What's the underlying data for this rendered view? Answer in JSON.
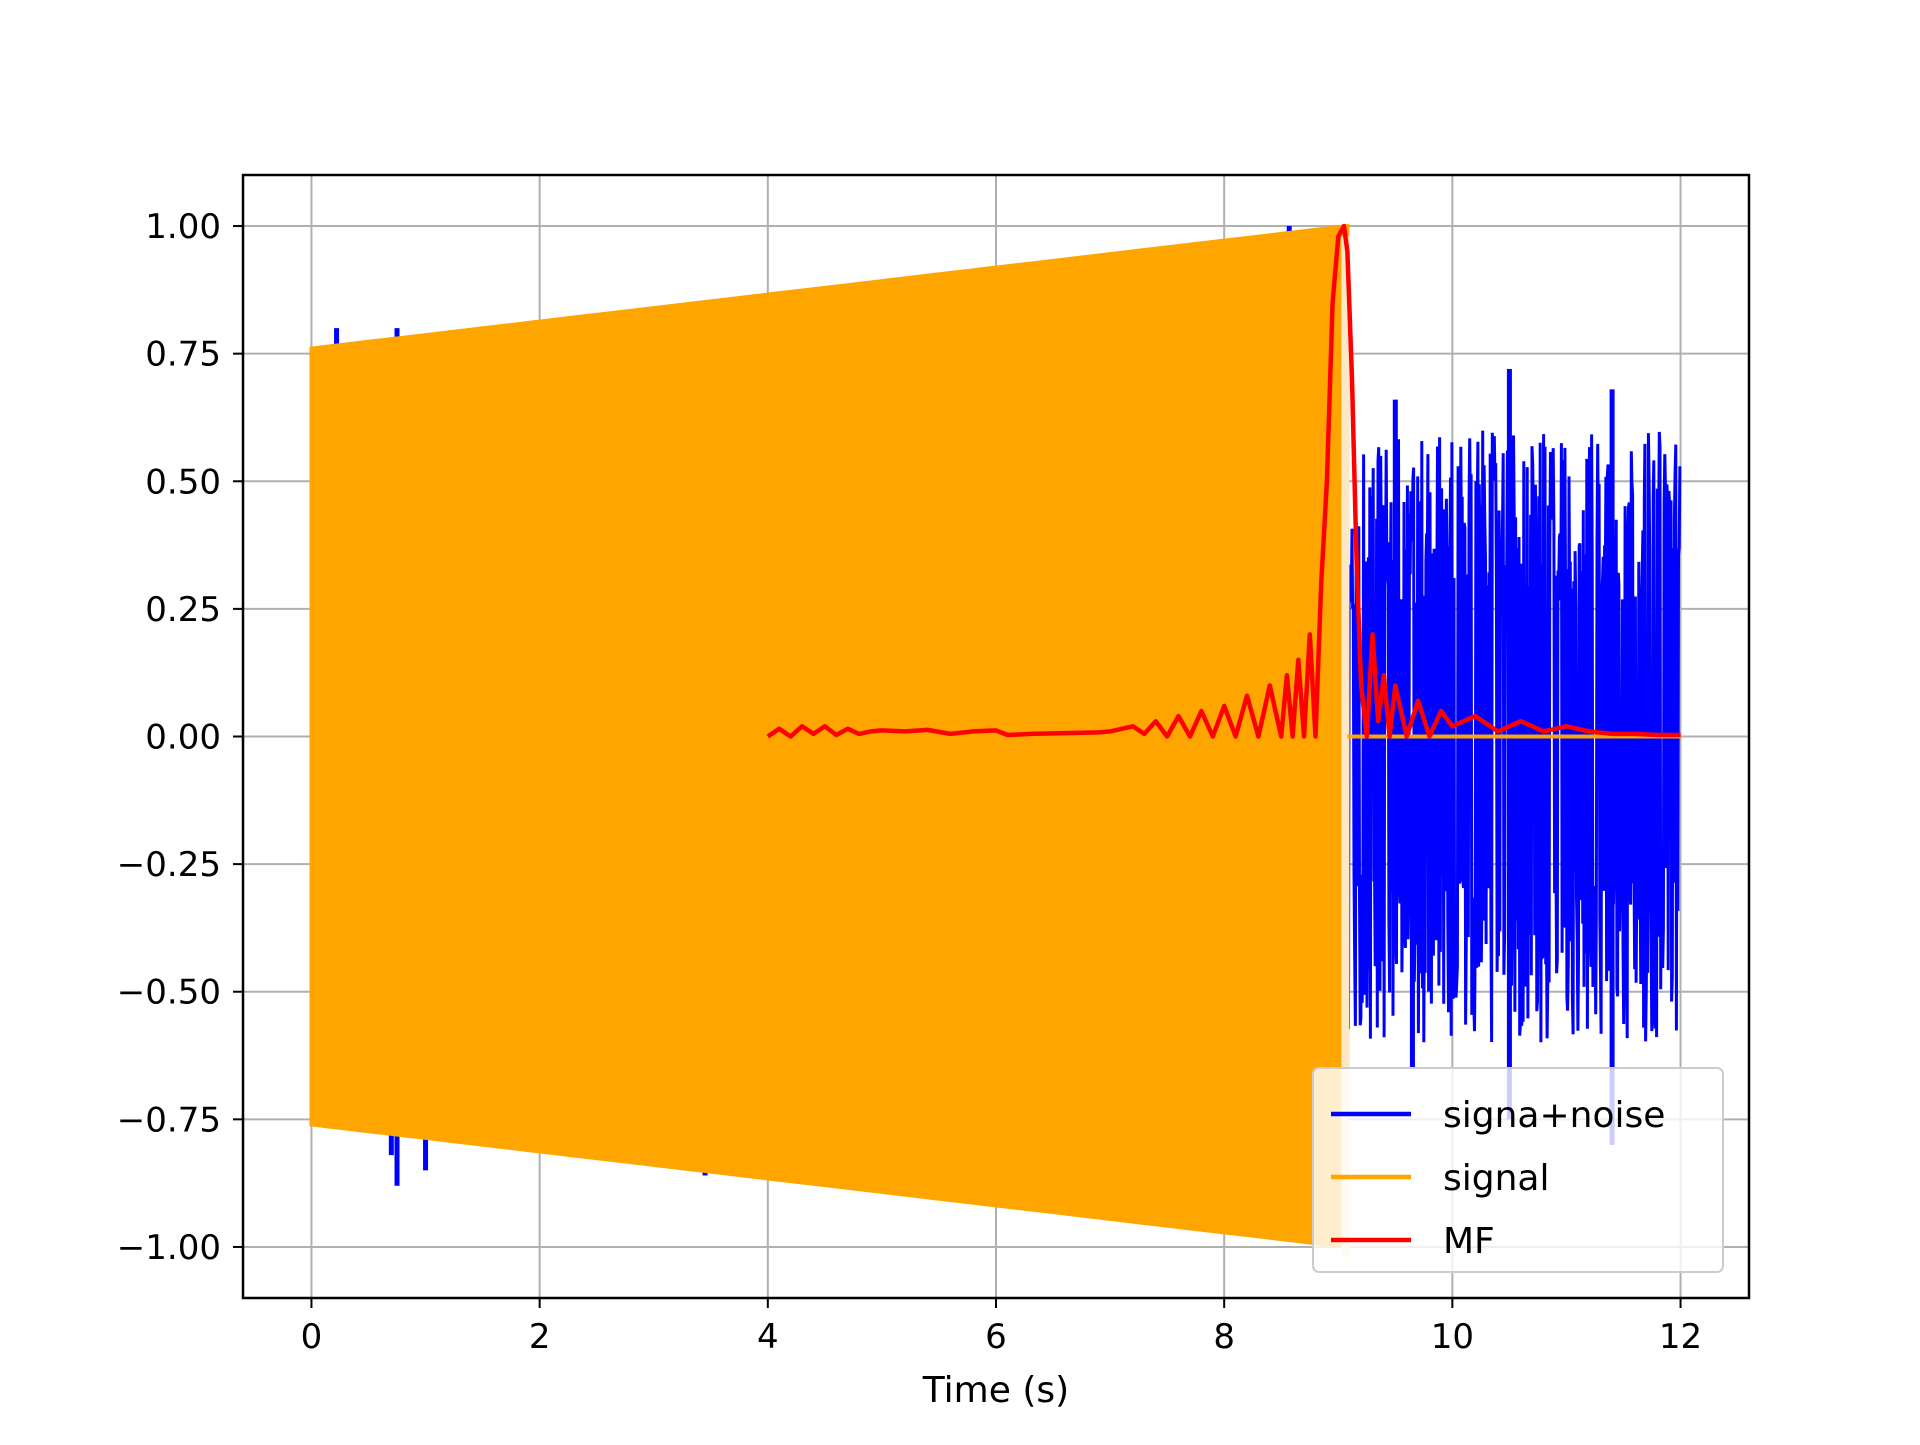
{
  "chart_data": {
    "type": "line",
    "title": "",
    "xlabel": "Time (s)",
    "ylabel": "",
    "xlim": [
      -0.6,
      12.6
    ],
    "ylim": [
      -1.1,
      1.1
    ],
    "grid": true,
    "legend_position": "lower-right",
    "x_ticks": [
      0,
      2,
      4,
      6,
      8,
      10,
      12
    ],
    "x_tick_labels": [
      "0",
      "2",
      "4",
      "6",
      "8",
      "10",
      "12"
    ],
    "y_ticks": [
      1.0,
      0.75,
      0.5,
      0.25,
      0.0,
      -0.25,
      -0.5,
      -0.75,
      -1.0
    ],
    "y_tick_labels": [
      "1.00",
      "0.75",
      "0.50",
      "0.25",
      "0.00",
      "−0.25",
      "−0.50",
      "−0.75",
      "−1.00"
    ],
    "series": [
      {
        "name": "signa+noise",
        "color": "#0000ff",
        "segments": [
          {
            "description_key": "noise_before",
            "x": [
              0.0,
              12.0
            ],
            "amplitude": 0.5
          },
          {
            "description_key": "noise_after",
            "x": [
              9.08,
              12.0
            ],
            "amplitude": 0.6
          }
        ],
        "spikes": [
          {
            "x": 0.22,
            "y": 0.8
          },
          {
            "x": 0.75,
            "y": 0.8
          },
          {
            "x": 0.7,
            "y": -0.82
          },
          {
            "x": 0.75,
            "y": -0.88
          },
          {
            "x": 1.0,
            "y": -0.85
          },
          {
            "x": 3.45,
            "y": -0.86
          },
          {
            "x": 8.57,
            "y": 1.0
          },
          {
            "x": 9.5,
            "y": 0.66
          },
          {
            "x": 10.5,
            "y": 0.72
          },
          {
            "x": 11.4,
            "y": 0.68
          },
          {
            "x": 9.65,
            "y": -0.65
          },
          {
            "x": 10.5,
            "y": -0.75
          },
          {
            "x": 11.4,
            "y": -0.8
          }
        ]
      },
      {
        "name": "signal",
        "color": "#ffa500",
        "x_start": 0.0,
        "x_end": 9.08,
        "envelope_start": 0.76,
        "envelope_end": 1.0,
        "after_value": 0.0,
        "after_end": 12.0
      },
      {
        "name": "MF",
        "color": "#ff0000",
        "x": [
          4.0,
          4.1,
          4.2,
          4.3,
          4.4,
          4.5,
          4.6,
          4.7,
          4.8,
          4.9,
          5.0,
          5.2,
          5.4,
          5.6,
          5.8,
          6.0,
          6.1,
          6.3,
          6.5,
          6.7,
          6.9,
          7.0,
          7.2,
          7.3,
          7.4,
          7.5,
          7.6,
          7.7,
          7.8,
          7.9,
          8.0,
          8.1,
          8.2,
          8.3,
          8.4,
          8.5,
          8.55,
          8.6,
          8.65,
          8.7,
          8.75,
          8.8,
          8.85,
          8.9,
          8.95,
          9.0,
          9.05,
          9.08,
          9.12,
          9.16,
          9.2,
          9.25,
          9.3,
          9.35,
          9.4,
          9.45,
          9.5,
          9.6,
          9.7,
          9.8,
          9.9,
          10.0,
          10.2,
          10.4,
          10.6,
          10.8,
          11.0,
          11.2,
          11.4,
          11.6,
          11.8,
          12.0
        ],
        "y": [
          0.0,
          0.015,
          0.0,
          0.02,
          0.005,
          0.02,
          0.003,
          0.015,
          0.005,
          0.01,
          0.012,
          0.01,
          0.013,
          0.005,
          0.01,
          0.012,
          0.003,
          0.005,
          0.006,
          0.007,
          0.008,
          0.01,
          0.02,
          0.005,
          0.03,
          0.0,
          0.04,
          0.0,
          0.05,
          0.0,
          0.06,
          0.0,
          0.08,
          0.0,
          0.1,
          0.0,
          0.12,
          0.0,
          0.15,
          0.0,
          0.2,
          0.0,
          0.3,
          0.5,
          0.85,
          0.98,
          1.0,
          0.95,
          0.7,
          0.35,
          0.1,
          0.0,
          0.2,
          0.03,
          0.12,
          0.0,
          0.1,
          0.0,
          0.07,
          0.0,
          0.05,
          0.02,
          0.04,
          0.01,
          0.03,
          0.01,
          0.02,
          0.01,
          0.005,
          0.005,
          0.003,
          0.003
        ]
      }
    ]
  }
}
